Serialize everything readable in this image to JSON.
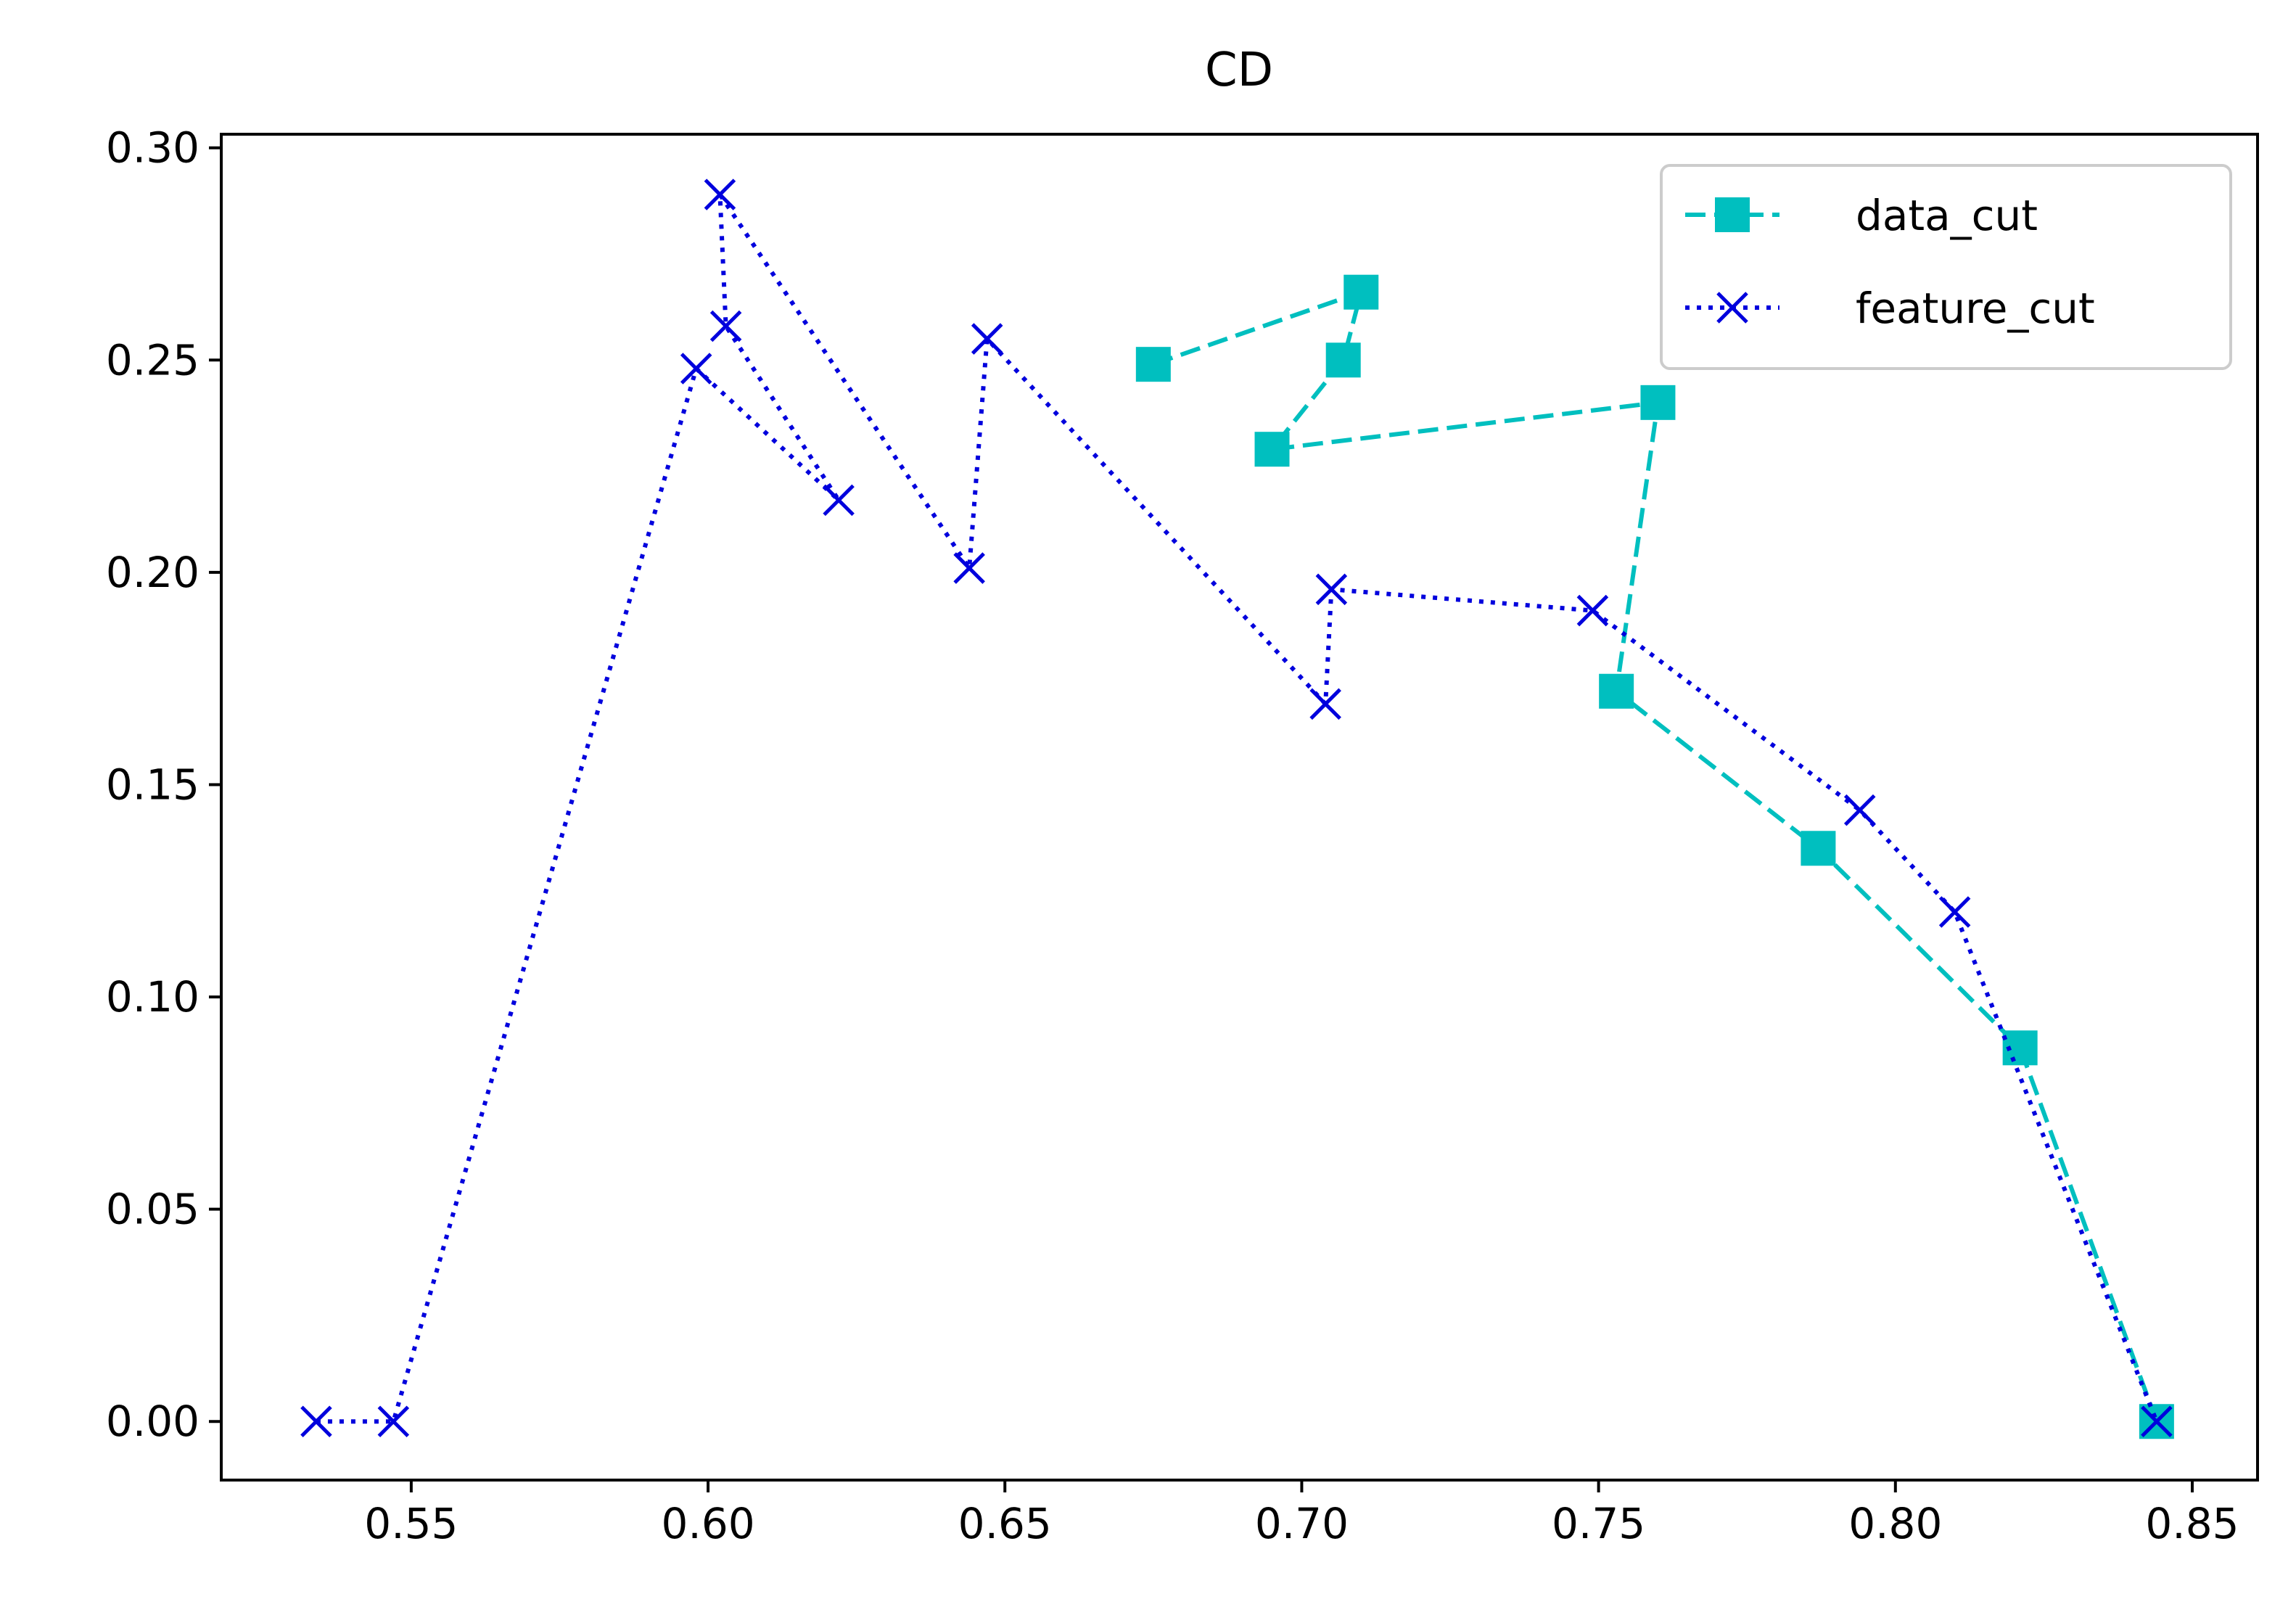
{
  "chart_data": {
    "type": "line",
    "title": "CD",
    "xlabel": "",
    "ylabel": "",
    "xlim": [
      0.518,
      0.861
    ],
    "ylim": [
      -0.0138,
      0.3032
    ],
    "xticks": [
      0.55,
      0.6,
      0.65,
      0.7,
      0.75,
      0.8,
      0.85
    ],
    "xtick_labels": [
      "0.55",
      "0.60",
      "0.65",
      "0.70",
      "0.75",
      "0.80",
      "0.85"
    ],
    "yticks": [
      0.0,
      0.05,
      0.1,
      0.15,
      0.2,
      0.25,
      0.3
    ],
    "ytick_labels": [
      "0.00",
      "0.05",
      "0.10",
      "0.15",
      "0.20",
      "0.25",
      "0.30"
    ],
    "grid": false,
    "legend": {
      "position": "top-right"
    },
    "series": [
      {
        "name": "data_cut",
        "color": "#00bfbf",
        "line_style": "dashed",
        "marker": "square",
        "points": [
          [
            0.675,
            0.249
          ],
          [
            0.71,
            0.266
          ],
          [
            0.707,
            0.25
          ],
          [
            0.695,
            0.229
          ],
          [
            0.76,
            0.24
          ],
          [
            0.753,
            0.172
          ],
          [
            0.787,
            0.135
          ],
          [
            0.821,
            0.088
          ],
          [
            0.844,
            0.0
          ]
        ]
      },
      {
        "name": "feature_cut",
        "color": "#0000dd",
        "line_style": "dotted",
        "marker": "x",
        "points": [
          [
            0.534,
            0.0
          ],
          [
            0.547,
            0.0
          ],
          [
            0.598,
            0.248
          ],
          [
            0.622,
            0.217
          ],
          [
            0.603,
            0.258
          ],
          [
            0.602,
            0.289
          ],
          [
            0.644,
            0.201
          ],
          [
            0.647,
            0.255
          ],
          [
            0.704,
            0.169
          ],
          [
            0.705,
            0.196
          ],
          [
            0.749,
            0.191
          ],
          [
            0.794,
            0.144
          ],
          [
            0.81,
            0.12
          ],
          [
            0.844,
            0.0
          ]
        ]
      }
    ]
  }
}
